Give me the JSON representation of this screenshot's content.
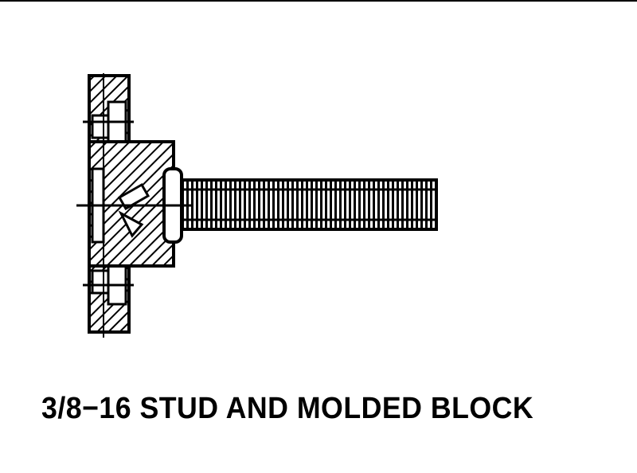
{
  "caption": "3/8−16 STUD AND MOLDED BLOCK",
  "colors": {
    "ink": "#000000",
    "paper": "#ffffff"
  }
}
